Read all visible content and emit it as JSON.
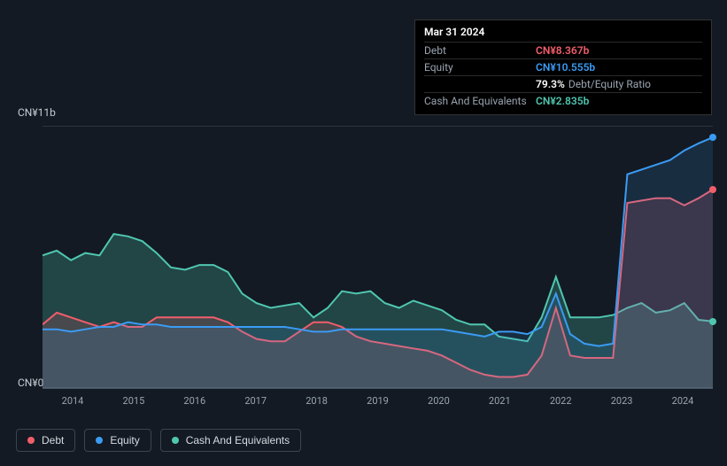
{
  "background_color": "#131a23",
  "tooltip": {
    "date": "Mar 31 2024",
    "rows": [
      {
        "label": "Debt",
        "value": "CN¥8.367b",
        "cls": "debt"
      },
      {
        "label": "Equity",
        "value": "CN¥10.555b",
        "cls": "equity"
      }
    ],
    "ratio": {
      "pct": "79.3%",
      "label": "Debt/Equity Ratio"
    },
    "cash_row": {
      "label": "Cash And Equivalents",
      "value": "CN¥2.835b",
      "cls": "cash"
    }
  },
  "chart": {
    "type": "area-line",
    "y_label_top": "CN¥11b",
    "y_label_bottom": "CN¥0",
    "ylim": [
      0,
      11
    ],
    "x_categories": [
      "2014",
      "2015",
      "2016",
      "2017",
      "2018",
      "2019",
      "2020",
      "2021",
      "2022",
      "2023",
      "2024"
    ],
    "grid_color": "#2b3440",
    "plot_bg": "#131a23",
    "series": [
      {
        "name": "Cash And Equivalents",
        "color": "#4fc7b0",
        "fill_opacity": 0.25,
        "line_width": 2,
        "data": [
          5.6,
          5.8,
          5.4,
          5.7,
          5.6,
          6.5,
          6.4,
          6.2,
          5.7,
          5.1,
          5.0,
          5.2,
          5.2,
          4.9,
          4.0,
          3.6,
          3.4,
          3.5,
          3.6,
          3.0,
          3.4,
          4.1,
          4.0,
          4.1,
          3.6,
          3.4,
          3.7,
          3.5,
          3.3,
          2.9,
          2.7,
          2.7,
          2.2,
          2.1,
          2.0,
          3.0,
          4.7,
          3.0,
          3.0,
          3.0,
          3.1,
          3.4,
          3.6,
          3.2,
          3.3,
          3.6,
          2.9,
          2.835
        ],
        "end_marker": true
      },
      {
        "name": "Debt",
        "color": "#f25e6b",
        "fill_opacity": 0.18,
        "line_width": 2,
        "data": [
          2.7,
          3.2,
          3.0,
          2.8,
          2.6,
          2.8,
          2.6,
          2.6,
          3.0,
          3.0,
          3.0,
          3.0,
          3.0,
          2.8,
          2.4,
          2.1,
          2.0,
          2.0,
          2.4,
          2.8,
          2.8,
          2.6,
          2.2,
          2.0,
          1.9,
          1.8,
          1.7,
          1.6,
          1.4,
          1.1,
          0.8,
          0.6,
          0.5,
          0.5,
          0.6,
          1.4,
          3.4,
          1.4,
          1.3,
          1.3,
          1.3,
          7.8,
          7.9,
          8.0,
          8.0,
          7.7,
          8.0,
          8.367
        ],
        "end_marker": true
      },
      {
        "name": "Equity",
        "color": "#3b9bf4",
        "fill_opacity": 0.15,
        "line_width": 2,
        "data": [
          2.5,
          2.5,
          2.4,
          2.5,
          2.6,
          2.6,
          2.8,
          2.7,
          2.7,
          2.6,
          2.6,
          2.6,
          2.6,
          2.6,
          2.6,
          2.6,
          2.6,
          2.6,
          2.5,
          2.4,
          2.4,
          2.5,
          2.5,
          2.5,
          2.5,
          2.5,
          2.5,
          2.5,
          2.5,
          2.4,
          2.3,
          2.2,
          2.4,
          2.4,
          2.3,
          2.6,
          4.0,
          2.3,
          1.9,
          1.8,
          1.9,
          9.0,
          9.2,
          9.4,
          9.6,
          10.0,
          10.3,
          10.555
        ],
        "end_marker": true
      }
    ],
    "legend": [
      {
        "label": "Debt",
        "color": "#f25e6b"
      },
      {
        "label": "Equity",
        "color": "#3b9bf4"
      },
      {
        "label": "Cash And Equivalents",
        "color": "#4fc7b0"
      }
    ]
  }
}
